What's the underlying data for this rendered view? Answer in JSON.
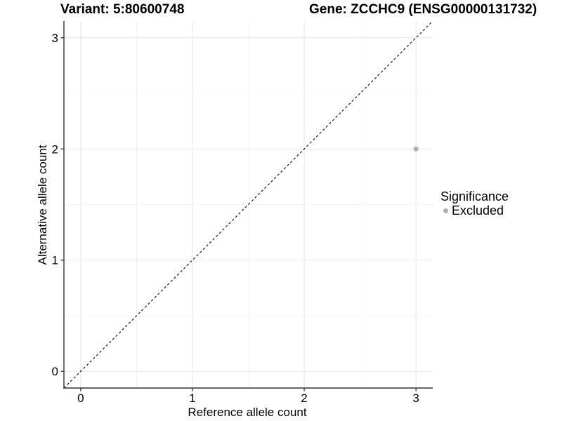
{
  "chart_data": {
    "type": "scatter",
    "titles": [
      "Variant: 5:80600748",
      "Gene: ZCCHC9 (ENSG00000131732)"
    ],
    "xlabel": "Reference allele count",
    "ylabel": "Alternative allele count",
    "xlim": [
      -0.15,
      3.15
    ],
    "ylim": [
      -0.15,
      3.15
    ],
    "x_ticks": [
      0,
      1,
      2,
      3
    ],
    "y_ticks": [
      0,
      1,
      2,
      3
    ],
    "x_tick_labels": [
      "0",
      "1",
      "2",
      "3"
    ],
    "y_tick_labels": [
      "0",
      "1",
      "2",
      "3"
    ],
    "x_minor_ticks": [
      0.5,
      1.5,
      2.5
    ],
    "y_minor_ticks": [
      0.5,
      1.5,
      2.5
    ],
    "grid": "major+minor",
    "identity_line": {
      "style": "dashed",
      "slope": 1,
      "intercept": 0,
      "color": "#1a1a1a"
    },
    "series": [
      {
        "name": "Excluded",
        "color": "#b0b0b0",
        "points": [
          {
            "x": 3,
            "y": 2
          }
        ]
      }
    ],
    "legend": {
      "title": "Significance",
      "position": "right",
      "entries": [
        {
          "label": "Excluded",
          "color": "#b0b0b0",
          "marker": "circle"
        }
      ]
    }
  },
  "colors": {
    "background": "#ffffff",
    "grid_major": "#e9e9e9",
    "grid_minor": "#f4f4f4",
    "axis": "#333333",
    "tick": "#333333",
    "text": "#000000",
    "point": "#b0b0b0"
  }
}
